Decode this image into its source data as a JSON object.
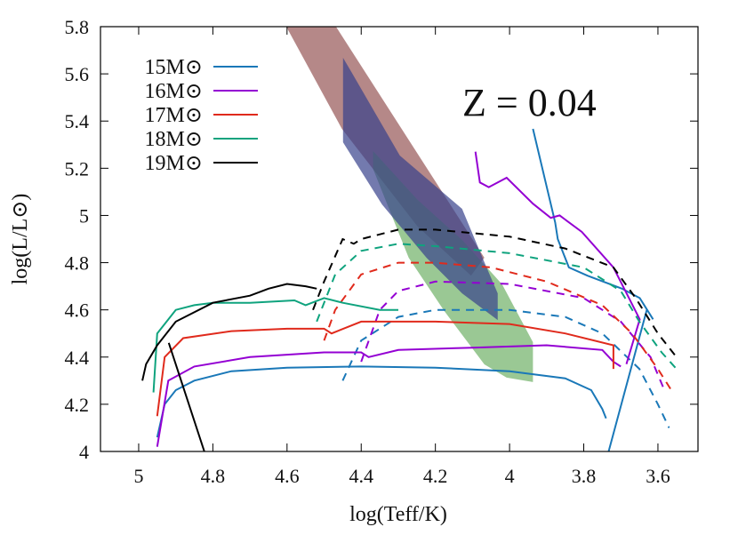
{
  "chart_data": {
    "type": "line",
    "x_label": "log(Teff/K)",
    "y_label": "log(L/L⊙)",
    "annotation": "Z = 0.04",
    "xlim": [
      5.103,
      3.492
    ],
    "ylim": [
      4,
      5.8
    ],
    "xticks": [
      5,
      4.8,
      4.6,
      4.4,
      4.2,
      4,
      3.8,
      3.6
    ],
    "yticks": [
      4,
      4.2,
      4.4,
      4.6,
      4.8,
      5,
      5.2,
      5.4,
      5.6,
      5.8
    ],
    "legend": "top-left",
    "regions": [
      {
        "color": "rgba(150,85,85,0.7)",
        "x": [
          4.602,
          4.468,
          4.068,
          4.104,
          4.248,
          4.452
        ],
        "values": [
          5.8,
          5.8,
          4.821,
          4.745,
          4.953,
          5.367
        ]
      },
      {
        "color": "rgba(100,170,90,0.65)",
        "x": [
          4.368,
          4.248,
          4.128,
          4.02,
          3.937,
          3.937,
          4.008,
          4.068,
          4.176,
          4.272,
          4.368
        ],
        "values": [
          5.273,
          5.066,
          4.896,
          4.708,
          4.463,
          4.294,
          4.313,
          4.369,
          4.595,
          4.821,
          5.197
        ]
      },
      {
        "color": "rgba(55,65,140,0.7)",
        "x": [
          4.449,
          4.428,
          4.296,
          4.128,
          4.068,
          4.032,
          4.032,
          4.128,
          4.224,
          4.344,
          4.449
        ],
        "values": [
          5.668,
          5.612,
          5.254,
          5.028,
          4.802,
          4.67,
          4.557,
          4.67,
          4.821,
          5.047,
          5.31
        ]
      }
    ],
    "series": [
      {
        "name": "15M⊙",
        "color": "#1a78b8",
        "segments": [
          {
            "style": "solid",
            "x": [
              4.95,
              4.93,
              4.9,
              4.85,
              4.75,
              4.6,
              4.4,
              4.2,
              4.0,
              3.85,
              3.78,
              3.75,
              3.74,
              null,
              3.937,
              3.877,
              3.87,
              3.84,
              3.79,
              3.697,
              3.649,
              3.613,
              null,
              3.733,
              3.63
            ],
            "values": [
              4.06,
              4.2,
              4.26,
              4.3,
              4.34,
              4.355,
              4.36,
              4.355,
              4.34,
              4.31,
              4.26,
              4.18,
              4.14,
              null,
              5.367,
              4.97,
              4.9,
              4.78,
              4.745,
              4.69,
              4.65,
              4.56,
              null,
              4.0,
              4.6
            ]
          },
          {
            "style": "dashed",
            "x": [
              4.45,
              4.4,
              4.3,
              4.2,
              4.0,
              3.85,
              3.75,
              3.65,
              3.6,
              3.57
            ],
            "values": [
              4.3,
              4.47,
              4.57,
              4.6,
              4.6,
              4.57,
              4.5,
              4.35,
              4.2,
              4.1
            ]
          }
        ]
      },
      {
        "name": "16M⊙",
        "color": "#9400d3",
        "segments": [
          {
            "style": "solid",
            "x": [
              4.95,
              4.92,
              4.85,
              4.7,
              4.5,
              4.4,
              4.38,
              4.3,
              4.1,
              3.9,
              3.75,
              3.72,
              3.7,
              null,
              4.092,
              4.08,
              4.056,
              4.008,
              3.937,
              3.889,
              3.865,
              3.805,
              3.72,
              3.649,
              3.685
            ],
            "values": [
              4.02,
              4.3,
              4.36,
              4.4,
              4.42,
              4.42,
              4.4,
              4.43,
              4.44,
              4.45,
              4.43,
              4.38,
              4.36,
              null,
              5.27,
              5.14,
              5.12,
              5.16,
              5.05,
              4.99,
              5.0,
              4.93,
              4.78,
              4.56,
              4.37
            ]
          },
          {
            "style": "dashed",
            "x": [
              4.4,
              4.35,
              4.3,
              4.2,
              4.0,
              3.8,
              3.7,
              3.62,
              3.58
            ],
            "values": [
              4.38,
              4.6,
              4.68,
              4.72,
              4.71,
              4.65,
              4.55,
              4.4,
              4.25
            ]
          }
        ]
      },
      {
        "name": "17M⊙",
        "color": "#e02a1c",
        "segments": [
          {
            "style": "solid",
            "x": [
              4.95,
              4.93,
              4.88,
              4.75,
              4.6,
              4.5,
              4.48,
              4.4,
              4.2,
              4.0,
              3.85,
              3.72,
              3.72
            ],
            "values": [
              4.15,
              4.4,
              4.48,
              4.51,
              4.52,
              4.52,
              4.5,
              4.55,
              4.55,
              4.54,
              4.5,
              4.45,
              4.35
            ]
          },
          {
            "style": "dashed",
            "x": [
              4.5,
              4.47,
              4.4,
              4.3,
              4.2,
              4.05,
              3.9,
              3.75,
              3.67,
              3.6,
              3.56
            ],
            "values": [
              4.47,
              4.6,
              4.75,
              4.8,
              4.8,
              4.78,
              4.72,
              4.62,
              4.5,
              4.35,
              4.25
            ]
          }
        ]
      },
      {
        "name": "18M⊙",
        "color": "#0fa37e",
        "segments": [
          {
            "style": "solid",
            "x": [
              4.96,
              4.95,
              4.9,
              4.85,
              4.8,
              4.7,
              4.58,
              4.55,
              4.5,
              4.45,
              4.35,
              4.3
            ],
            "values": [
              4.25,
              4.5,
              4.6,
              4.62,
              4.63,
              4.63,
              4.64,
              4.62,
              4.65,
              4.63,
              4.6,
              4.6
            ]
          },
          {
            "style": "dashed",
            "x": [
              4.52,
              4.47,
              4.4,
              4.3,
              4.2,
              4.0,
              3.8,
              3.7,
              3.65,
              3.59,
              3.55
            ],
            "values": [
              4.55,
              4.75,
              4.85,
              4.88,
              4.87,
              4.84,
              4.78,
              4.68,
              4.55,
              4.42,
              4.35
            ]
          }
        ]
      },
      {
        "name": "19M⊙",
        "color": "#000000",
        "segments": [
          {
            "style": "solid",
            "x": [
              4.99,
              4.98,
              4.95,
              4.9,
              4.8,
              4.7,
              4.65,
              4.6,
              4.55,
              4.52,
              null,
              4.919,
              4.823
            ],
            "values": [
              4.3,
              4.37,
              4.45,
              4.55,
              4.63,
              4.66,
              4.69,
              4.71,
              4.7,
              4.69,
              null,
              4.46,
              4.0
            ]
          },
          {
            "style": "dashed",
            "x": [
              4.53,
              4.5,
              4.45,
              4.42,
              4.4,
              4.3,
              4.2,
              4.0,
              3.85,
              3.72,
              3.66,
              3.6,
              3.55
            ],
            "values": [
              4.6,
              4.72,
              4.9,
              4.88,
              4.9,
              4.94,
              4.94,
              4.91,
              4.86,
              4.78,
              4.65,
              4.5,
              4.4
            ]
          }
        ]
      }
    ]
  }
}
